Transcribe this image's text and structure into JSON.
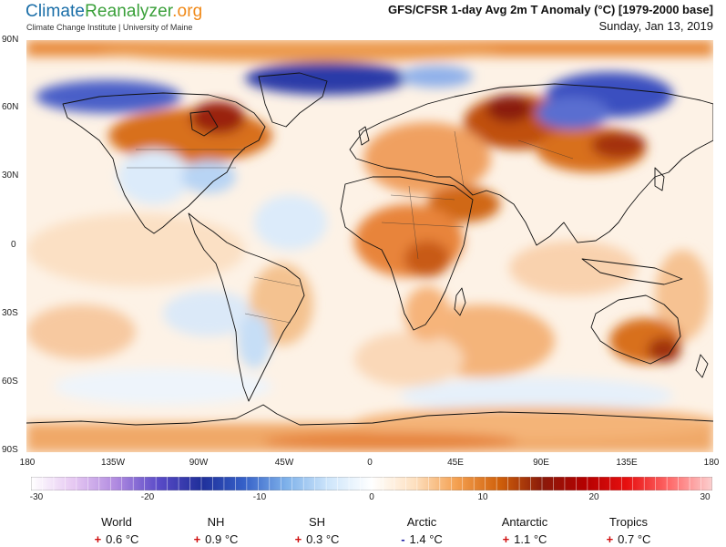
{
  "header": {
    "brand_part1": "Climate",
    "brand_part2": "Reanalyzer",
    "brand_part3": ".org",
    "subtitle": "Climate Change Institute | University of Maine",
    "title": "GFS/CFSR 1-day Avg 2m T Anomaly (°C) [1979-2000 base]",
    "date": "Sunday, Jan 13, 2019"
  },
  "map": {
    "lat_labels": [
      "90N",
      "60N",
      "30N",
      "0",
      "30S",
      "60S",
      "90S"
    ],
    "lon_labels": [
      "180",
      "135W",
      "90W",
      "45W",
      "0",
      "45E",
      "90E",
      "135E",
      "180"
    ]
  },
  "colorbar": {
    "ticks": [
      "-30",
      "-20",
      "-10",
      "0",
      "10",
      "20",
      "30"
    ],
    "colors": [
      "#ffffff",
      "#e6c8f2",
      "#b08ae0",
      "#5a4bc8",
      "#1f2f9a",
      "#3560c8",
      "#7fb2ea",
      "#cfe6fb",
      "#ffffff",
      "#fde0c0",
      "#f4a050",
      "#d0600a",
      "#8a1a0a",
      "#b40000",
      "#e81010",
      "#ff6a6a",
      "#fbd0d0"
    ]
  },
  "stats": [
    {
      "name": "World",
      "sign": "+",
      "value": "0.6 °C"
    },
    {
      "name": "NH",
      "sign": "+",
      "value": "0.9 °C"
    },
    {
      "name": "SH",
      "sign": "+",
      "value": "0.3 °C"
    },
    {
      "name": "Arctic",
      "sign": "-",
      "value": "1.4 °C"
    },
    {
      "name": "Antarctic",
      "sign": "+",
      "value": "1.1 °C"
    },
    {
      "name": "Tropics",
      "sign": "+",
      "value": "0.7 °C"
    }
  ]
}
